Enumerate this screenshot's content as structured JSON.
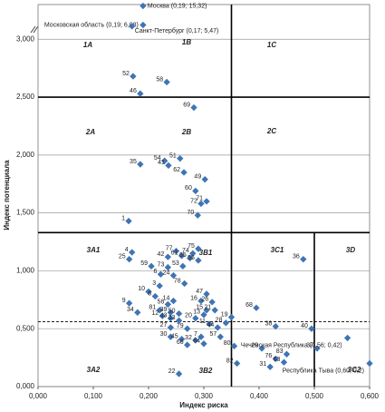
{
  "chart_data": {
    "type": "scatter",
    "x_label": "Индекс риска",
    "y_label": "Индекс потенциала",
    "xlim": [
      0,
      0.6
    ],
    "ylim": [
      0,
      3.3
    ],
    "xticks": [
      {
        "value": 0,
        "label": "0,000"
      },
      {
        "value": 0.1,
        "label": "0,100"
      },
      {
        "value": 0.2,
        "label": "0,200"
      },
      {
        "value": 0.3,
        "label": "0,300"
      },
      {
        "value": 0.4,
        "label": "0,400"
      },
      {
        "value": 0.5,
        "label": "0,500"
      },
      {
        "value": 0.6,
        "label": "0,600"
      }
    ],
    "yticks": [
      {
        "value": 0,
        "label": "0,000"
      },
      {
        "value": 0.5,
        "label": "0,500"
      },
      {
        "value": 1,
        "label": "1,000"
      },
      {
        "value": 1.5,
        "label": "1,500"
      },
      {
        "value": 2,
        "label": "2,000"
      },
      {
        "value": 2.5,
        "label": "2,500"
      },
      {
        "value": 3,
        "label": "3,000"
      }
    ],
    "grid": true,
    "color": "#3f74b5",
    "thresholds": {
      "x": [
        0.35,
        0.5
      ],
      "y": [
        2.5,
        1.33
      ],
      "dashed_y": 0.56
    },
    "zones": [
      "1A",
      "1B",
      "1C",
      "2A",
      "2B",
      "2C",
      "3A1",
      "3B1",
      "3C1",
      "3D",
      "3A2",
      "3B2",
      "3C2"
    ],
    "series": [
      {
        "labels": [
          "52",
          "58",
          "46",
          "69",
          "54",
          "41",
          "51",
          "35",
          "62",
          "49",
          "60",
          "72",
          "71",
          "70",
          "1",
          "36",
          "4",
          "25",
          "59",
          "42",
          "77",
          "61",
          "74",
          "75",
          "65",
          "55",
          "73",
          "53",
          "6",
          "24",
          "78",
          "3",
          "10",
          "8",
          "9",
          "14",
          "56",
          "47",
          "16",
          "26",
          "81",
          "39",
          "15",
          "21",
          "12",
          "50",
          "13",
          "34",
          "68",
          "19",
          "43",
          "33",
          "20",
          "28",
          "11",
          "27",
          "79",
          "44",
          "38",
          "40",
          "57",
          "7",
          "30",
          "45",
          "32",
          "80",
          "29",
          "66",
          "64",
          "37",
          "76",
          "83",
          "63",
          "31",
          "82",
          "22",
          "Чеченская Республика (0,56; 0,42)",
          "Республика Тыва (0,60; 0,2)"
        ],
        "x": [
          0.172,
          0.233,
          0.185,
          0.282,
          0.229,
          0.236,
          0.257,
          0.185,
          0.264,
          0.302,
          0.285,
          0.295,
          0.305,
          0.289,
          0.164,
          0.48,
          0.17,
          0.165,
          0.205,
          0.235,
          0.25,
          0.26,
          0.28,
          0.29,
          0.275,
          0.29,
          0.235,
          0.262,
          0.222,
          0.245,
          0.265,
          0.22,
          0.2,
          0.212,
          0.165,
          0.245,
          0.235,
          0.305,
          0.295,
          0.315,
          0.22,
          0.24,
          0.305,
          0.32,
          0.225,
          0.255,
          0.3,
          0.18,
          0.395,
          0.35,
          0.24,
          0.255,
          0.285,
          0.34,
          0.31,
          0.24,
          0.27,
          0.325,
          0.43,
          0.495,
          0.33,
          0.295,
          0.24,
          0.26,
          0.285,
          0.355,
          0.405,
          0.27,
          0.3,
          0.505,
          0.43,
          0.45,
          0.445,
          0.42,
          0.36,
          0.255,
          0.56,
          0.6
        ],
        "values": [
          2.68,
          2.63,
          2.53,
          2.41,
          1.95,
          1.91,
          1.97,
          1.92,
          1.85,
          1.79,
          1.69,
          1.58,
          1.6,
          1.48,
          1.43,
          1.1,
          1.16,
          1.1,
          1.04,
          1.12,
          1.17,
          1.13,
          1.15,
          1.19,
          1.11,
          1.09,
          1.03,
          1.04,
          0.97,
          0.96,
          0.89,
          0.87,
          0.82,
          0.78,
          0.72,
          0.74,
          0.71,
          0.8,
          0.74,
          0.73,
          0.66,
          0.64,
          0.66,
          0.66,
          0.61,
          0.63,
          0.62,
          0.64,
          0.68,
          0.6,
          0.59,
          0.57,
          0.59,
          0.55,
          0.54,
          0.51,
          0.5,
          0.51,
          0.52,
          0.5,
          0.43,
          0.43,
          0.43,
          0.41,
          0.4,
          0.35,
          0.33,
          0.36,
          0.37,
          0.33,
          0.24,
          0.28,
          0.21,
          0.17,
          0.2,
          0.11,
          0.42,
          0.2
        ]
      }
    ],
    "outliers": {
      "labels": [
        "Москва (0,19; 15,32)",
        "Московская область (0,19; 6,08)",
        "Санкт-Петербург (0,17; 5,47)"
      ],
      "x": [
        0.19,
        0.19,
        0.17
      ],
      "values": [
        15.32,
        6.08,
        5.47
      ],
      "ylim": [
        5,
        16
      ]
    }
  }
}
